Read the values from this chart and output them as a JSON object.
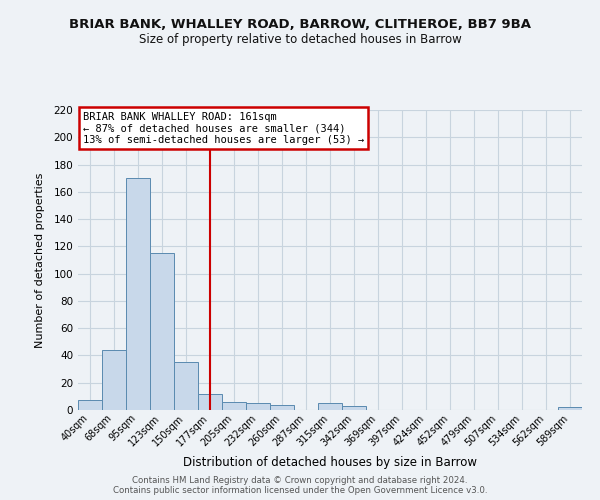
{
  "title": "BRIAR BANK, WHALLEY ROAD, BARROW, CLITHEROE, BB7 9BA",
  "subtitle": "Size of property relative to detached houses in Barrow",
  "xlabel": "Distribution of detached houses by size in Barrow",
  "ylabel": "Number of detached properties",
  "footer_line1": "Contains HM Land Registry data © Crown copyright and database right 2024.",
  "footer_line2": "Contains public sector information licensed under the Open Government Licence v3.0.",
  "bar_labels": [
    "40sqm",
    "68sqm",
    "95sqm",
    "123sqm",
    "150sqm",
    "177sqm",
    "205sqm",
    "232sqm",
    "260sqm",
    "287sqm",
    "315sqm",
    "342sqm",
    "369sqm",
    "397sqm",
    "424sqm",
    "452sqm",
    "479sqm",
    "507sqm",
    "534sqm",
    "562sqm",
    "589sqm"
  ],
  "bar_values": [
    7,
    44,
    170,
    115,
    35,
    12,
    6,
    5,
    4,
    0,
    5,
    3,
    0,
    0,
    0,
    0,
    0,
    0,
    0,
    0,
    2
  ],
  "bar_color": "#c8d8ea",
  "bar_edge_color": "#5a8ab0",
  "reference_line_x": 5.0,
  "reference_line_color": "#cc0000",
  "annotation_text": "BRIAR BANK WHALLEY ROAD: 161sqm\n← 87% of detached houses are smaller (344)\n13% of semi-detached houses are larger (53) →",
  "annotation_box_color": "#ffffff",
  "annotation_box_edge_color": "#cc0000",
  "ylim": [
    0,
    220
  ],
  "yticks": [
    0,
    20,
    40,
    60,
    80,
    100,
    120,
    140,
    160,
    180,
    200,
    220
  ],
  "grid_color": "#c8d4de",
  "background_color": "#eef2f6"
}
